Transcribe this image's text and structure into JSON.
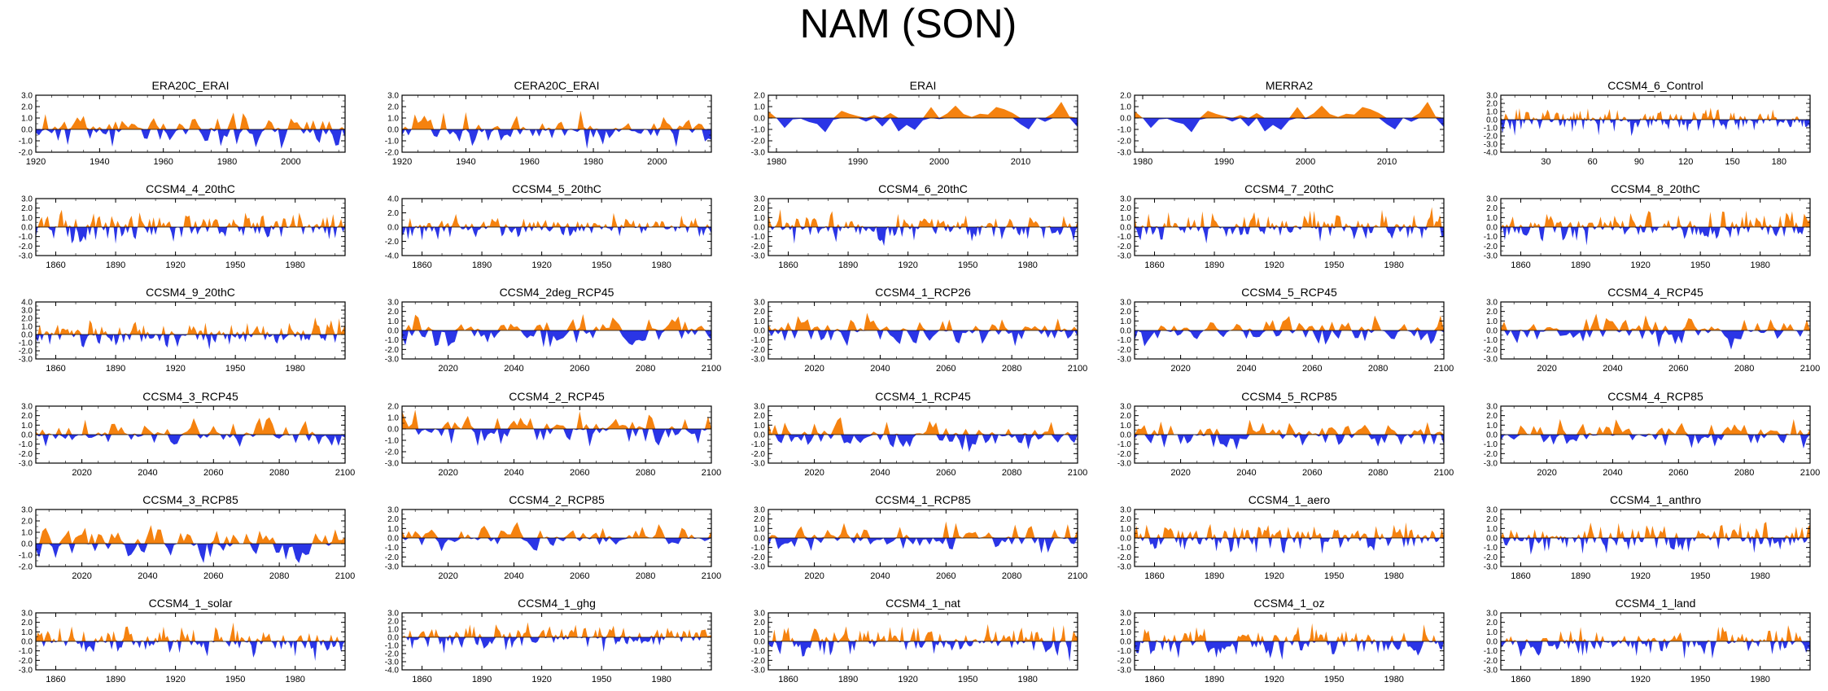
{
  "figure": {
    "title": "NAM (SON)",
    "colors": {
      "positive": "#f5820f",
      "negative": "#2a35e6",
      "axis": "#000000"
    }
  },
  "chart_data": [
    {
      "type": "area",
      "title": "ERA20C_ERAI",
      "xlim": [
        1920,
        2017
      ],
      "ylim": [
        -2.0,
        3.0
      ],
      "yticks": [
        "3.0",
        "2.0",
        "1.0",
        "0.0",
        "-1.0",
        "-2.0"
      ],
      "xticks": [
        1920,
        1940,
        1960,
        1980,
        2000
      ],
      "seed": 11,
      "step": 1
    },
    {
      "type": "area",
      "title": "CERA20C_ERAI",
      "xlim": [
        1920,
        2017
      ],
      "ylim": [
        -2.0,
        3.0
      ],
      "yticks": [
        "3.0",
        "2.0",
        "1.0",
        "0.0",
        "-1.0",
        "-2.0"
      ],
      "xticks": [
        1920,
        1940,
        1960,
        1980,
        2000
      ],
      "seed": 12,
      "step": 1
    },
    {
      "type": "area",
      "title": "ERAI",
      "xlim": [
        1979,
        2017
      ],
      "ylim": [
        -3.0,
        2.0
      ],
      "yticks": [
        "2.0",
        "1.0",
        "0.0",
        "-1.0",
        "-2.0",
        "-3.0"
      ],
      "xticks": [
        1980,
        1990,
        2000,
        2010
      ],
      "seed": 13,
      "step": 1
    },
    {
      "type": "area",
      "title": "MERRA2",
      "xlim": [
        1979,
        2017
      ],
      "ylim": [
        -3.0,
        2.0
      ],
      "yticks": [
        "2.0",
        "1.0",
        "0.0",
        "-1.0",
        "-2.0",
        "-3.0"
      ],
      "xticks": [
        1980,
        1990,
        2000,
        2010
      ],
      "seed": 13,
      "step": 1
    },
    {
      "type": "area",
      "title": "CCSM4_6_Control",
      "xlim": [
        1,
        200
      ],
      "ylim": [
        -4.0,
        3.0
      ],
      "yticks": [
        "3.0",
        "2.0",
        "1.0",
        "0.0",
        "-1.0",
        "-2.0",
        "-3.0",
        "-4.0"
      ],
      "xticks": [
        30,
        60,
        90,
        120,
        150,
        180
      ],
      "seed": 15,
      "step": 1
    },
    {
      "type": "area",
      "title": "CCSM4_4_20thC",
      "xlim": [
        1850,
        2005
      ],
      "ylim": [
        -3.0,
        3.0
      ],
      "yticks": [
        "3.0",
        "2.0",
        "1.0",
        "0.0",
        "-1.0",
        "-2.0",
        "-3.0"
      ],
      "xticks": [
        1860,
        1890,
        1920,
        1950,
        1980
      ],
      "seed": 21,
      "step": 1
    },
    {
      "type": "area",
      "title": "CCSM4_5_20thC",
      "xlim": [
        1850,
        2005
      ],
      "ylim": [
        -4.0,
        4.0
      ],
      "yticks": [
        "4.0",
        "2.0",
        "0.0",
        "-2.0",
        "-4.0"
      ],
      "xticks": [
        1860,
        1890,
        1920,
        1950,
        1980
      ],
      "seed": 22,
      "step": 1
    },
    {
      "type": "area",
      "title": "CCSM4_6_20thC",
      "xlim": [
        1850,
        2005
      ],
      "ylim": [
        -3.0,
        3.0
      ],
      "yticks": [
        "3.0",
        "2.0",
        "1.0",
        "0.0",
        "-1.0",
        "-2.0",
        "-3.0"
      ],
      "xticks": [
        1860,
        1890,
        1920,
        1950,
        1980
      ],
      "seed": 23,
      "step": 1
    },
    {
      "type": "area",
      "title": "CCSM4_7_20thC",
      "xlim": [
        1850,
        2005
      ],
      "ylim": [
        -3.0,
        3.0
      ],
      "yticks": [
        "3.0",
        "2.0",
        "1.0",
        "0.0",
        "-1.0",
        "-2.0",
        "-3.0"
      ],
      "xticks": [
        1860,
        1890,
        1920,
        1950,
        1980
      ],
      "seed": 24,
      "step": 1
    },
    {
      "type": "area",
      "title": "CCSM4_8_20thC",
      "xlim": [
        1850,
        2005
      ],
      "ylim": [
        -3.0,
        3.0
      ],
      "yticks": [
        "3.0",
        "2.0",
        "1.0",
        "0.0",
        "-1.0",
        "-2.0",
        "-3.0"
      ],
      "xticks": [
        1860,
        1890,
        1920,
        1950,
        1980
      ],
      "seed": 25,
      "step": 1
    },
    {
      "type": "area",
      "title": "CCSM4_9_20thC",
      "xlim": [
        1850,
        2005
      ],
      "ylim": [
        -3.0,
        4.0
      ],
      "yticks": [
        "4.0",
        "3.0",
        "2.0",
        "1.0",
        "0.0",
        "-1.0",
        "-2.0",
        "-3.0"
      ],
      "xticks": [
        1860,
        1890,
        1920,
        1950,
        1980
      ],
      "seed": 31,
      "step": 1
    },
    {
      "type": "area",
      "title": "CCSM4_2deg_RCP45",
      "xlim": [
        2006,
        2100
      ],
      "ylim": [
        -3.0,
        3.0
      ],
      "yticks": [
        "3.0",
        "2.0",
        "1.0",
        "0.0",
        "-1.0",
        "-2.0",
        "-3.0"
      ],
      "xticks": [
        2020,
        2040,
        2060,
        2080,
        2100
      ],
      "seed": 32,
      "step": 1
    },
    {
      "type": "area",
      "title": "CCSM4_1_RCP26",
      "xlim": [
        2006,
        2100
      ],
      "ylim": [
        -3.0,
        3.0
      ],
      "yticks": [
        "3.0",
        "2.0",
        "1.0",
        "0.0",
        "-1.0",
        "-2.0",
        "-3.0"
      ],
      "xticks": [
        2020,
        2040,
        2060,
        2080,
        2100
      ],
      "seed": 33,
      "step": 1
    },
    {
      "type": "area",
      "title": "CCSM4_5_RCP45",
      "xlim": [
        2006,
        2100
      ],
      "ylim": [
        -3.0,
        3.0
      ],
      "yticks": [
        "3.0",
        "2.0",
        "1.0",
        "0.0",
        "-1.0",
        "-2.0",
        "-3.0"
      ],
      "xticks": [
        2020,
        2040,
        2060,
        2080,
        2100
      ],
      "seed": 34,
      "step": 1
    },
    {
      "type": "area",
      "title": "CCSM4_4_RCP45",
      "xlim": [
        2006,
        2100
      ],
      "ylim": [
        -3.0,
        3.0
      ],
      "yticks": [
        "3.0",
        "2.0",
        "1.0",
        "0.0",
        "-1.0",
        "-2.0",
        "-3.0"
      ],
      "xticks": [
        2020,
        2040,
        2060,
        2080,
        2100
      ],
      "seed": 35,
      "step": 1
    },
    {
      "type": "area",
      "title": "CCSM4_3_RCP45",
      "xlim": [
        2006,
        2100
      ],
      "ylim": [
        -3.0,
        3.0
      ],
      "yticks": [
        "3.0",
        "2.0",
        "1.0",
        "0.0",
        "-1.0",
        "-2.0",
        "-3.0"
      ],
      "xticks": [
        2020,
        2040,
        2060,
        2080,
        2100
      ],
      "seed": 41,
      "step": 1
    },
    {
      "type": "area",
      "title": "CCSM4_2_RCP45",
      "xlim": [
        2006,
        2100
      ],
      "ylim": [
        -3.0,
        2.0
      ],
      "yticks": [
        "2.0",
        "1.0",
        "0.0",
        "-1.0",
        "-2.0",
        "-3.0"
      ],
      "xticks": [
        2020,
        2040,
        2060,
        2080,
        2100
      ],
      "seed": 42,
      "step": 1
    },
    {
      "type": "area",
      "title": "CCSM4_1_RCP45",
      "xlim": [
        2006,
        2100
      ],
      "ylim": [
        -3.0,
        3.0
      ],
      "yticks": [
        "3.0",
        "2.0",
        "1.0",
        "0.0",
        "-1.0",
        "-2.0",
        "-3.0"
      ],
      "xticks": [
        2020,
        2040,
        2060,
        2080,
        2100
      ],
      "seed": 43,
      "step": 1
    },
    {
      "type": "area",
      "title": "CCSM4_5_RCP85",
      "xlim": [
        2006,
        2100
      ],
      "ylim": [
        -3.0,
        3.0
      ],
      "yticks": [
        "3.0",
        "2.0",
        "1.0",
        "0.0",
        "-1.0",
        "-2.0",
        "-3.0"
      ],
      "xticks": [
        2020,
        2040,
        2060,
        2080,
        2100
      ],
      "seed": 44,
      "step": 1
    },
    {
      "type": "area",
      "title": "CCSM4_4_RCP85",
      "xlim": [
        2006,
        2100
      ],
      "ylim": [
        -3.0,
        3.0
      ],
      "yticks": [
        "3.0",
        "2.0",
        "1.0",
        "0.0",
        "-1.0",
        "-2.0",
        "-3.0"
      ],
      "xticks": [
        2020,
        2040,
        2060,
        2080,
        2100
      ],
      "seed": 45,
      "step": 1
    },
    {
      "type": "area",
      "title": "CCSM4_3_RCP85",
      "xlim": [
        2006,
        2100
      ],
      "ylim": [
        -2.0,
        3.0
      ],
      "yticks": [
        "3.0",
        "2.0",
        "1.0",
        "0.0",
        "-1.0",
        "-2.0"
      ],
      "xticks": [
        2020,
        2040,
        2060,
        2080,
        2100
      ],
      "seed": 51,
      "step": 1
    },
    {
      "type": "area",
      "title": "CCSM4_2_RCP85",
      "xlim": [
        2006,
        2100
      ],
      "ylim": [
        -3.0,
        3.0
      ],
      "yticks": [
        "3.0",
        "2.0",
        "1.0",
        "0.0",
        "-1.0",
        "-2.0",
        "-3.0"
      ],
      "xticks": [
        2020,
        2040,
        2060,
        2080,
        2100
      ],
      "seed": 52,
      "step": 1
    },
    {
      "type": "area",
      "title": "CCSM4_1_RCP85",
      "xlim": [
        2006,
        2100
      ],
      "ylim": [
        -3.0,
        3.0
      ],
      "yticks": [
        "3.0",
        "2.0",
        "1.0",
        "0.0",
        "-1.0",
        "-2.0",
        "-3.0"
      ],
      "xticks": [
        2020,
        2040,
        2060,
        2080,
        2100
      ],
      "seed": 53,
      "step": 1
    },
    {
      "type": "area",
      "title": "CCSM4_1_aero",
      "xlim": [
        1850,
        2005
      ],
      "ylim": [
        -3.0,
        3.0
      ],
      "yticks": [
        "3.0",
        "2.0",
        "1.0",
        "0.0",
        "-1.0",
        "-2.0",
        "-3.0"
      ],
      "xticks": [
        1860,
        1890,
        1920,
        1950,
        1980
      ],
      "seed": 54,
      "step": 1
    },
    {
      "type": "area",
      "title": "CCSM4_1_anthro",
      "xlim": [
        1850,
        2005
      ],
      "ylim": [
        -3.0,
        3.0
      ],
      "yticks": [
        "3.0",
        "2.0",
        "1.0",
        "0.0",
        "-1.0",
        "-2.0",
        "-3.0"
      ],
      "xticks": [
        1860,
        1890,
        1920,
        1950,
        1980
      ],
      "seed": 55,
      "step": 1
    },
    {
      "type": "area",
      "title": "CCSM4_1_solar",
      "xlim": [
        1850,
        2005
      ],
      "ylim": [
        -3.0,
        3.0
      ],
      "yticks": [
        "3.0",
        "2.0",
        "1.0",
        "0.0",
        "-1.0",
        "-2.0",
        "-3.0"
      ],
      "xticks": [
        1860,
        1890,
        1920,
        1950,
        1980
      ],
      "seed": 61,
      "step": 1
    },
    {
      "type": "area",
      "title": "CCSM4_1_ghg",
      "xlim": [
        1850,
        2005
      ],
      "ylim": [
        -4.0,
        3.0
      ],
      "yticks": [
        "3.0",
        "2.0",
        "1.0",
        "0.0",
        "-1.0",
        "-2.0",
        "-3.0",
        "-4.0"
      ],
      "xticks": [
        1860,
        1890,
        1920,
        1950,
        1980
      ],
      "seed": 62,
      "step": 1
    },
    {
      "type": "area",
      "title": "CCSM4_1_nat",
      "xlim": [
        1850,
        2005
      ],
      "ylim": [
        -3.0,
        3.0
      ],
      "yticks": [
        "3.0",
        "2.0",
        "1.0",
        "0.0",
        "-1.0",
        "-2.0",
        "-3.0"
      ],
      "xticks": [
        1860,
        1890,
        1920,
        1950,
        1980
      ],
      "seed": 63,
      "step": 1
    },
    {
      "type": "area",
      "title": "CCSM4_1_oz",
      "xlim": [
        1850,
        2005
      ],
      "ylim": [
        -3.0,
        3.0
      ],
      "yticks": [
        "3.0",
        "2.0",
        "1.0",
        "0.0",
        "-1.0",
        "-2.0",
        "-3.0"
      ],
      "xticks": [
        1860,
        1890,
        1920,
        1950,
        1980
      ],
      "seed": 64,
      "step": 1
    },
    {
      "type": "area",
      "title": "CCSM4_1_land",
      "xlim": [
        1850,
        2005
      ],
      "ylim": [
        -3.0,
        3.0
      ],
      "yticks": [
        "3.0",
        "2.0",
        "1.0",
        "0.0",
        "-1.0",
        "-2.0",
        "-3.0"
      ],
      "xticks": [
        1860,
        1890,
        1920,
        1950,
        1980
      ],
      "seed": 65,
      "step": 1
    }
  ]
}
